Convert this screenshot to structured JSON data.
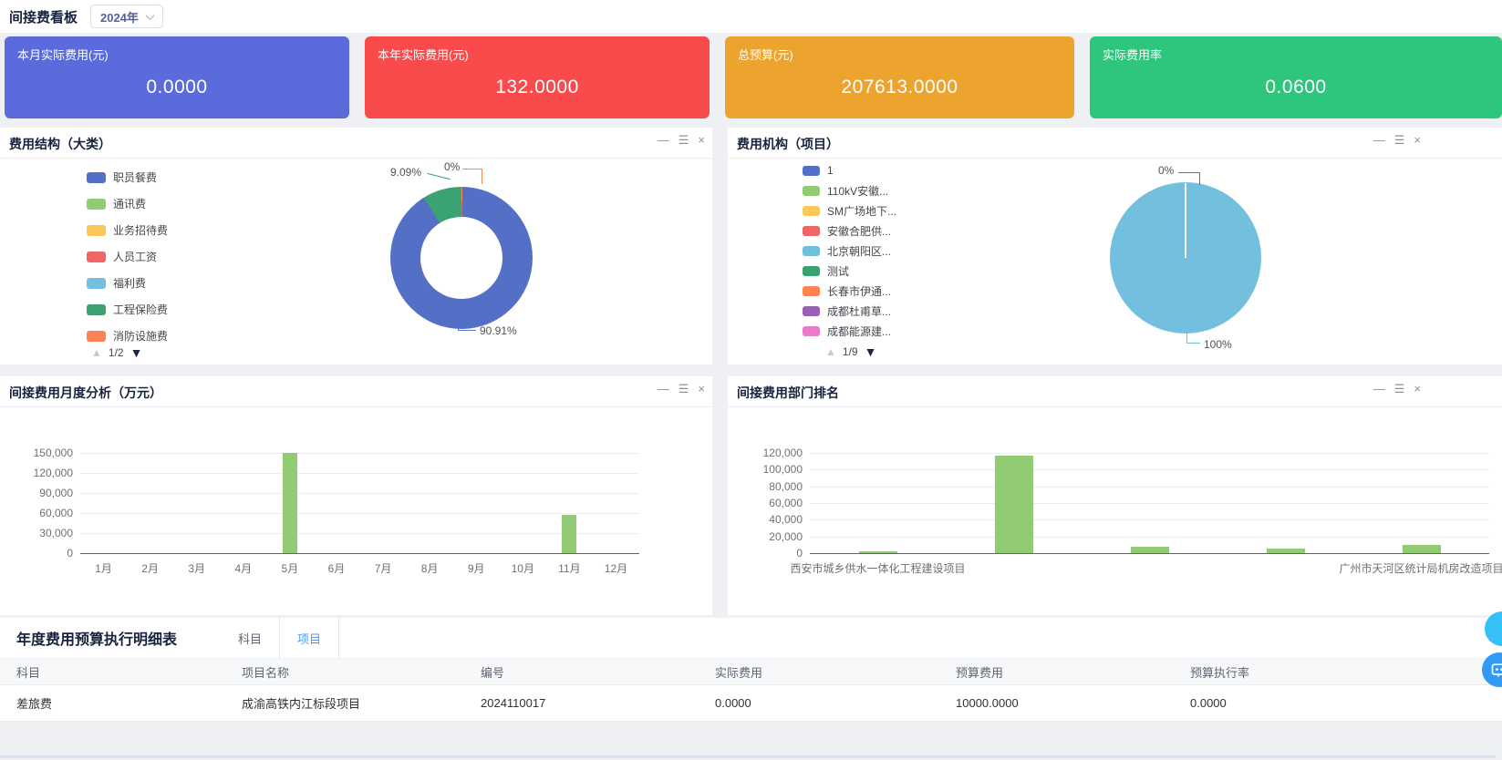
{
  "header": {
    "title": "间接费看板",
    "year_select": "2024年"
  },
  "kpi_cards": [
    {
      "label": "本月实际费用(元)",
      "value": "0.0000",
      "color": "#5c6bdb"
    },
    {
      "label": "本年实际费用(元)",
      "value": "132.0000",
      "color": "#f94b4b"
    },
    {
      "label": "总预算(元)",
      "value": "207613.0000",
      "color": "#eca42e"
    },
    {
      "label": "实际费用率",
      "value": "0.0600",
      "color": "#2ec57d"
    }
  ],
  "panel_icons": {
    "minimize": "—",
    "menu": "☰",
    "close": "×"
  },
  "pager_icons": {
    "up": "▲",
    "down": "▼"
  },
  "panels": {
    "structure": {
      "title": "费用结构（大类）",
      "legend": [
        {
          "label": "职员餐费",
          "color": "#5470c6"
        },
        {
          "label": "通讯费",
          "color": "#91cc75"
        },
        {
          "label": "业务招待费",
          "color": "#fac858"
        },
        {
          "label": "人员工资",
          "color": "#ee6666"
        },
        {
          "label": "福利费",
          "color": "#73c0de"
        },
        {
          "label": "工程保险费",
          "color": "#3ba272"
        },
        {
          "label": "消防设施费",
          "color": "#fc8452"
        }
      ],
      "pagination": "1/2"
    },
    "organization": {
      "title": "费用机构（项目）",
      "legend": [
        {
          "label": "1",
          "color": "#5470c6"
        },
        {
          "label": "110kV安徽...",
          "color": "#91cc75"
        },
        {
          "label": "SM广场地下...",
          "color": "#fac858"
        },
        {
          "label": "安徽合肥供...",
          "color": "#ee6666"
        },
        {
          "label": "北京朝阳区...",
          "color": "#73c0de"
        },
        {
          "label": "测试",
          "color": "#3ba272"
        },
        {
          "label": "长春市伊通...",
          "color": "#fc8452"
        },
        {
          "label": "成都杜甫草...",
          "color": "#9a60b4"
        },
        {
          "label": "成都能源建...",
          "color": "#ea7ccc"
        }
      ],
      "pagination": "1/9"
    },
    "monthly": {
      "title": "间接费用月度分析（万元）"
    },
    "ranking": {
      "title": "间接费用部门排名"
    }
  },
  "chart_data": [
    {
      "id": "structure_donut",
      "type": "pie",
      "subtype": "donut",
      "title": "费用结构（大类）",
      "labels_shown": [
        "9.09%",
        "0%",
        "90.91%"
      ],
      "slices": [
        {
          "pct": 0,
          "color": "#fc8452",
          "label": "0%"
        },
        {
          "pct": 90.91,
          "color": "#5470c6",
          "label": "90.91%"
        },
        {
          "pct": 9.09,
          "color": "#3ba272",
          "label": "9.09%"
        }
      ]
    },
    {
      "id": "organization_pie",
      "type": "pie",
      "title": "费用机构（项目）",
      "labels_shown": [
        "0%",
        "100%"
      ],
      "slices": [
        {
          "pct": 100,
          "color": "#73c0de",
          "label": "100%"
        },
        {
          "pct": 0,
          "color": "#73c0de",
          "label": "0%"
        }
      ]
    },
    {
      "id": "monthly_bar",
      "type": "bar",
      "title": "间接费用月度分析（万元）",
      "categories": [
        "1月",
        "2月",
        "3月",
        "4月",
        "5月",
        "6月",
        "7月",
        "8月",
        "9月",
        "10月",
        "11月",
        "12月"
      ],
      "values": [
        0,
        0,
        0,
        0,
        150000,
        0,
        0,
        0,
        0,
        0,
        57500,
        0
      ],
      "y_ticks": [
        "0",
        "30,000",
        "60,000",
        "90,000",
        "120,000",
        "150,000"
      ],
      "ylim": [
        0,
        150000
      ],
      "bar_color": "#91cc75",
      "grid": true,
      "legend_position": "none"
    },
    {
      "id": "ranking_bar",
      "type": "bar",
      "title": "间接费用部门排名",
      "categories": [
        "西安市城乡供水一体化工程建设项目",
        "",
        "",
        "",
        "广州市天河区统计局机房改造项目"
      ],
      "values": [
        800,
        117000,
        7500,
        6000,
        9500
      ],
      "y_ticks": [
        "0",
        "20,000",
        "40,000",
        "60,000",
        "80,000",
        "100,000",
        "120,000"
      ],
      "ylim": [
        0,
        120000
      ],
      "bar_color": "#91cc75",
      "grid": true,
      "legend_position": "none"
    }
  ],
  "table": {
    "title": "年度费用预算执行明细表",
    "tabs": [
      {
        "label": "科目",
        "active": false
      },
      {
        "label": "项目",
        "active": true
      }
    ],
    "columns": [
      "科目",
      "项目名称",
      "编号",
      "实际费用",
      "预算费用",
      "预算执行率"
    ],
    "rows": [
      [
        "差旅费",
        "成渝高铁内江标段项目",
        "2024110017",
        "0.0000",
        "10000.0000",
        "0.0000"
      ]
    ]
  }
}
